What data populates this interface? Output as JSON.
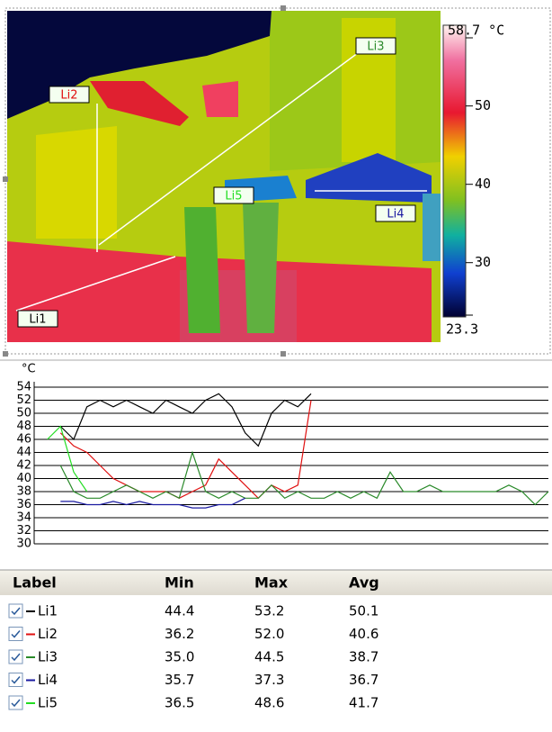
{
  "image": {
    "labels": [
      "Li1",
      "Li2",
      "Li3",
      "Li4",
      "Li5"
    ]
  },
  "colorbar": {
    "range": [
      23.3,
      58.7
    ],
    "ticks": [
      {
        "value": 58.7,
        "label": "58.7 °C"
      },
      50,
      40,
      30,
      23.3
    ]
  },
  "chart_data": {
    "type": "line",
    "y_label": "°C",
    "ylim": [
      30,
      54
    ],
    "yticks": [
      30,
      32,
      34,
      36,
      38,
      40,
      42,
      44,
      46,
      48,
      50,
      52,
      54
    ],
    "grid": true,
    "series": [
      {
        "name": "Li1",
        "color": "#000000",
        "values": [
          null,
          null,
          48,
          46,
          51,
          52,
          51,
          52,
          51,
          50,
          52,
          51,
          50,
          52,
          53,
          51,
          47,
          45,
          50,
          52,
          51,
          53,
          null,
          null,
          null,
          null,
          null,
          null,
          null,
          null,
          null,
          null,
          null,
          null,
          null,
          null,
          null,
          null,
          null,
          null
        ]
      },
      {
        "name": "Li2",
        "color": "#e01010",
        "values": [
          null,
          null,
          47,
          45,
          44,
          42,
          40,
          39,
          38,
          38,
          38,
          37,
          38,
          39,
          43,
          41,
          39,
          37,
          39,
          38,
          39,
          52,
          null,
          null,
          null,
          null,
          null,
          null,
          null,
          null,
          null,
          null,
          null,
          null,
          null,
          null,
          null,
          null,
          null,
          null
        ]
      },
      {
        "name": "Li3",
        "color": "#2a8a2a",
        "values": [
          null,
          null,
          42,
          38,
          37,
          37,
          38,
          39,
          38,
          37,
          38,
          37,
          44,
          38,
          37,
          38,
          37,
          37,
          39,
          37,
          38,
          37,
          37,
          38,
          37,
          38,
          37,
          41,
          38,
          38,
          39,
          38,
          38,
          38,
          38,
          38,
          39,
          38,
          36,
          38
        ]
      },
      {
        "name": "Li4",
        "color": "#1a1aa0",
        "values": [
          null,
          null,
          36.5,
          36.5,
          36,
          36,
          36.5,
          36,
          36.5,
          36,
          36,
          36,
          35.5,
          35.5,
          36,
          36,
          37,
          null,
          null,
          null,
          null,
          null,
          null,
          null,
          null,
          null,
          null,
          null,
          null,
          null,
          null,
          null,
          null,
          null,
          null,
          null,
          null,
          null,
          null,
          null
        ]
      },
      {
        "name": "Li5",
        "color": "#22dd22",
        "values": [
          null,
          46,
          48,
          41,
          38,
          null,
          null,
          null,
          null,
          null,
          null,
          null,
          null,
          null,
          null,
          null,
          null,
          null,
          null,
          null,
          null,
          null,
          null,
          null,
          null,
          null,
          null,
          null,
          null,
          null,
          null,
          null,
          null,
          null,
          null,
          null,
          null,
          null,
          null,
          null
        ]
      }
    ]
  },
  "table": {
    "header": [
      "Label",
      "Min",
      "Max",
      "Avg"
    ],
    "rows": [
      [
        "Li1",
        "44.4",
        "53.2",
        "50.1"
      ],
      [
        "Li2",
        "36.2",
        "52.0",
        "40.6"
      ],
      [
        "Li3",
        "35.0",
        "44.5",
        "38.7"
      ],
      [
        "Li4",
        "35.7",
        "37.3",
        "36.7"
      ],
      [
        "Li5",
        "36.5",
        "48.6",
        "41.7"
      ]
    ]
  }
}
